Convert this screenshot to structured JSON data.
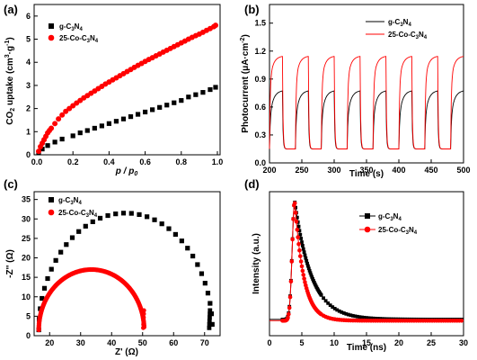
{
  "colors": {
    "black": "#000000",
    "red": "#ff0000"
  },
  "chart_data": [
    {
      "panel": "(a)",
      "type": "scatter",
      "xlabel": "p / p0",
      "ylabel": "CO2 uptake (cm3·g-1)",
      "xlim": [
        0,
        1.0
      ],
      "ylim": [
        0,
        6.5
      ],
      "xticks": [
        "0.0",
        "0.2",
        "0.4",
        "0.6",
        "0.8",
        "1.0"
      ],
      "yticks": [
        "0",
        "1",
        "2",
        "3",
        "4",
        "5",
        "6"
      ],
      "legend_position": "top-left",
      "series": [
        {
          "name": "g-C3N4",
          "color": "#000000",
          "marker": "square",
          "x": [
            0.01,
            0.03,
            0.06,
            0.1,
            0.14,
            0.2,
            0.24,
            0.28,
            0.32,
            0.36,
            0.4,
            0.44,
            0.48,
            0.52,
            0.56,
            0.6,
            0.64,
            0.68,
            0.72,
            0.76,
            0.8,
            0.84,
            0.88,
            0.92,
            0.96,
            0.99
          ],
          "y": [
            0.1,
            0.25,
            0.4,
            0.55,
            0.68,
            0.82,
            0.95,
            1.05,
            1.15,
            1.25,
            1.35,
            1.45,
            1.55,
            1.65,
            1.75,
            1.85,
            1.95,
            2.05,
            2.15,
            2.25,
            2.35,
            2.5,
            2.6,
            2.7,
            2.82,
            2.92
          ]
        },
        {
          "name": "25-Co-C3N4",
          "color": "#ff0000",
          "marker": "circle",
          "x": [
            0.01,
            0.02,
            0.03,
            0.04,
            0.05,
            0.06,
            0.07,
            0.08,
            0.1,
            0.12,
            0.14,
            0.16,
            0.18,
            0.2,
            0.22,
            0.24,
            0.26,
            0.28,
            0.3,
            0.32,
            0.34,
            0.36,
            0.38,
            0.4,
            0.42,
            0.44,
            0.46,
            0.48,
            0.5,
            0.52,
            0.54,
            0.56,
            0.58,
            0.6,
            0.62,
            0.64,
            0.66,
            0.68,
            0.7,
            0.72,
            0.74,
            0.76,
            0.78,
            0.8,
            0.82,
            0.84,
            0.86,
            0.88,
            0.9,
            0.92,
            0.94,
            0.96,
            0.98,
            0.99
          ],
          "y": [
            0.15,
            0.35,
            0.5,
            0.65,
            0.8,
            0.95,
            1.05,
            1.15,
            1.35,
            1.55,
            1.72,
            1.88,
            2.0,
            2.12,
            2.24,
            2.35,
            2.46,
            2.56,
            2.66,
            2.76,
            2.86,
            2.96,
            3.06,
            3.15,
            3.24,
            3.33,
            3.42,
            3.51,
            3.6,
            3.69,
            3.78,
            3.87,
            3.95,
            4.04,
            4.12,
            4.2,
            4.28,
            4.36,
            4.44,
            4.52,
            4.6,
            4.68,
            4.76,
            4.84,
            4.92,
            5.0,
            5.08,
            5.15,
            5.22,
            5.3,
            5.38,
            5.46,
            5.54,
            5.6
          ]
        }
      ]
    },
    {
      "panel": "(b)",
      "type": "line",
      "xlabel": "Time (s)",
      "ylabel": "Photocurrent (μA·cm-2)",
      "xlim": [
        200,
        500
      ],
      "ylim": [
        0.0,
        1.7
      ],
      "xticks": [
        "200",
        "250",
        "300",
        "350",
        "400",
        "450",
        "500"
      ],
      "yticks": [
        "0.0",
        "0.3",
        "0.6",
        "0.9",
        "1.2",
        "1.5"
      ],
      "legend_position": "top-right",
      "on_off": {
        "on_times": [
          200,
          240,
          280,
          320,
          360,
          400,
          440,
          480
        ],
        "on_duration": 20,
        "period": 40
      },
      "series": [
        {
          "name": "g-C3N4",
          "color": "#000000",
          "dark": 0.15,
          "peak": 0.78,
          "start": 0.48
        },
        {
          "name": "25-Co-C3N4",
          "color": "#ff0000",
          "dark": 0.15,
          "peak": 1.15,
          "start": 0.88
        }
      ]
    },
    {
      "panel": "(c)",
      "type": "scatter",
      "xlabel": "Z' (Ω)",
      "ylabel": "-Z'' (Ω)",
      "xlim": [
        15,
        75
      ],
      "ylim": [
        0,
        37
      ],
      "xticks": [
        "20",
        "30",
        "40",
        "50",
        "60",
        "70"
      ],
      "yticks": [
        "0",
        "5",
        "10",
        "15",
        "20",
        "25",
        "30",
        "35"
      ],
      "legend_position": "top-left",
      "series": [
        {
          "name": "g-C3N4",
          "color": "#000000",
          "marker": "square",
          "center": 44.5,
          "radius": 28,
          "height": 30,
          "end_x": 72.3
        },
        {
          "name": "25-Co-C3N4",
          "color": "#ff0000",
          "marker": "circle",
          "center": 33.5,
          "radius": 17,
          "height": 15.5,
          "end_x": 50.5
        }
      ]
    },
    {
      "panel": "(d)",
      "type": "line",
      "xlabel": "Time (ns)",
      "ylabel": "Intensity (a.u.)",
      "xlim": [
        0,
        30
      ],
      "ylim": [
        0,
        1.08
      ],
      "xticks": [
        "0",
        "5",
        "10",
        "15",
        "20",
        "25",
        "30"
      ],
      "legend_position": "top-right",
      "series": [
        {
          "name": "g-C3N4",
          "color": "#000000",
          "marker": "square",
          "peak_t": 3.9,
          "tau": 2.6,
          "baseline": 0.03
        },
        {
          "name": "25-Co-C3N4",
          "color": "#ff0000",
          "marker": "circle",
          "peak_t": 3.9,
          "tau": 1.4,
          "baseline": 0.02
        }
      ]
    }
  ]
}
